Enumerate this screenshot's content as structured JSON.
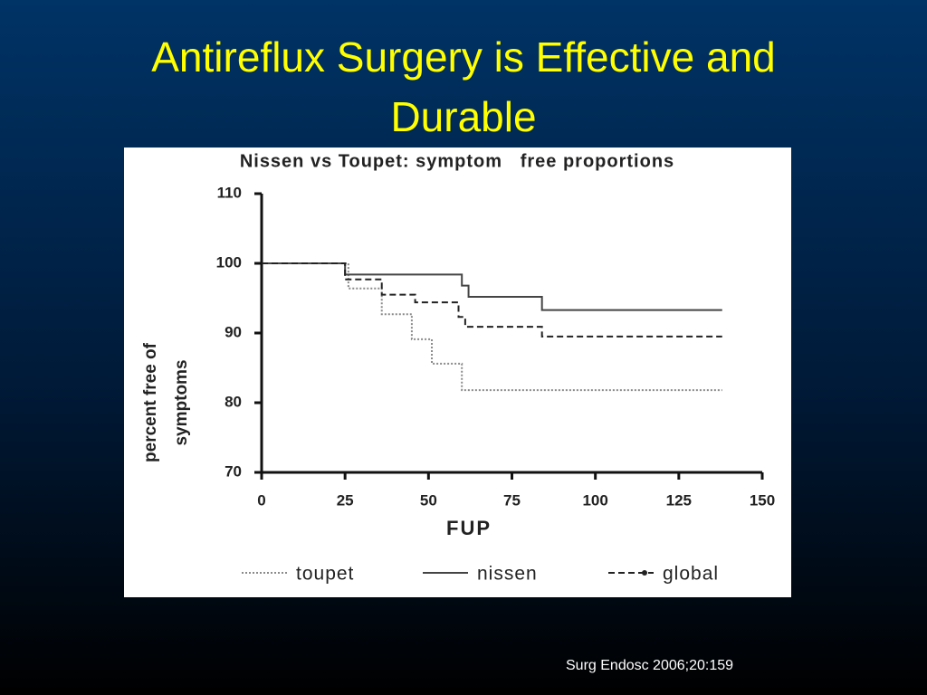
{
  "slide_title": [
    "Antireflux Surgery is Effective and",
    "Durable"
  ],
  "citation": "Surg Endosc 2006;20:159",
  "chart_data": {
    "type": "line",
    "step": "post",
    "title": "Nissen vs Toupet: symptom   free proportions",
    "xlabel": "FUP",
    "ylabel": [
      "percent free of",
      "symptoms"
    ],
    "xlim": [
      0,
      150
    ],
    "xticks": [
      0,
      25,
      50,
      75,
      100,
      125,
      150
    ],
    "ylim": [
      70,
      110
    ],
    "yticks": [
      70,
      80,
      90,
      100,
      110
    ],
    "grid": false,
    "legend": "bottom",
    "series": [
      {
        "name": "toupet",
        "color": "#8a8a8a",
        "dash": "dotted",
        "x": [
          0,
          26,
          36,
          45,
          51,
          60,
          138
        ],
        "values": [
          100,
          96.4,
          92.7,
          89.1,
          85.6,
          81.8,
          81.8
        ]
      },
      {
        "name": "nissen",
        "color": "#444444",
        "dash": "solid",
        "x": [
          0,
          25,
          60,
          62,
          84,
          138
        ],
        "values": [
          100,
          98.4,
          96.8,
          95.2,
          93.3,
          93.3
        ]
      },
      {
        "name": "global",
        "color": "#222222",
        "dash": "dashed",
        "x": [
          0,
          25,
          36,
          46,
          59,
          61,
          84,
          138
        ],
        "values": [
          100,
          97.7,
          95.5,
          94.4,
          92.3,
          90.9,
          89.5,
          89.5
        ]
      }
    ]
  }
}
